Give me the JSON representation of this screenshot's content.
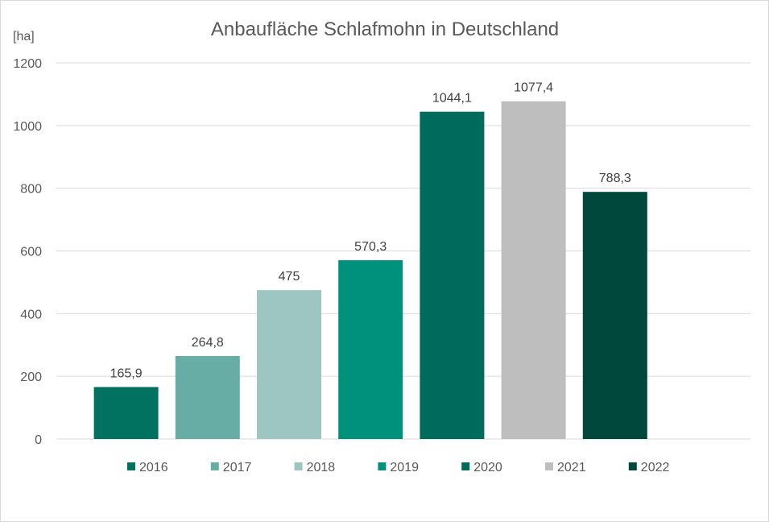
{
  "chart_data": {
    "type": "bar",
    "title": "Anbaufläche Schlafmohn in Deutschland",
    "ylabel": "[ha]",
    "xlabel": "",
    "ylim": [
      0,
      1200
    ],
    "yticks": [
      0,
      200,
      400,
      600,
      800,
      1000,
      1200
    ],
    "grid": true,
    "legend_position": "bottom",
    "categories": [
      "2016",
      "2017",
      "2018",
      "2019",
      "2020",
      "2021",
      "2022"
    ],
    "values": [
      165.9,
      264.8,
      475,
      570.3,
      1044.1,
      1077.4,
      788.3
    ],
    "value_labels": [
      "165,9",
      "264,8",
      "475",
      "570,3",
      "1044,1",
      "1077,4",
      "788,3"
    ],
    "colors": [
      "#00725f",
      "#68ada5",
      "#9dc6c3",
      "#00917d",
      "#006a5d",
      "#bebebe",
      "#00473c"
    ]
  }
}
